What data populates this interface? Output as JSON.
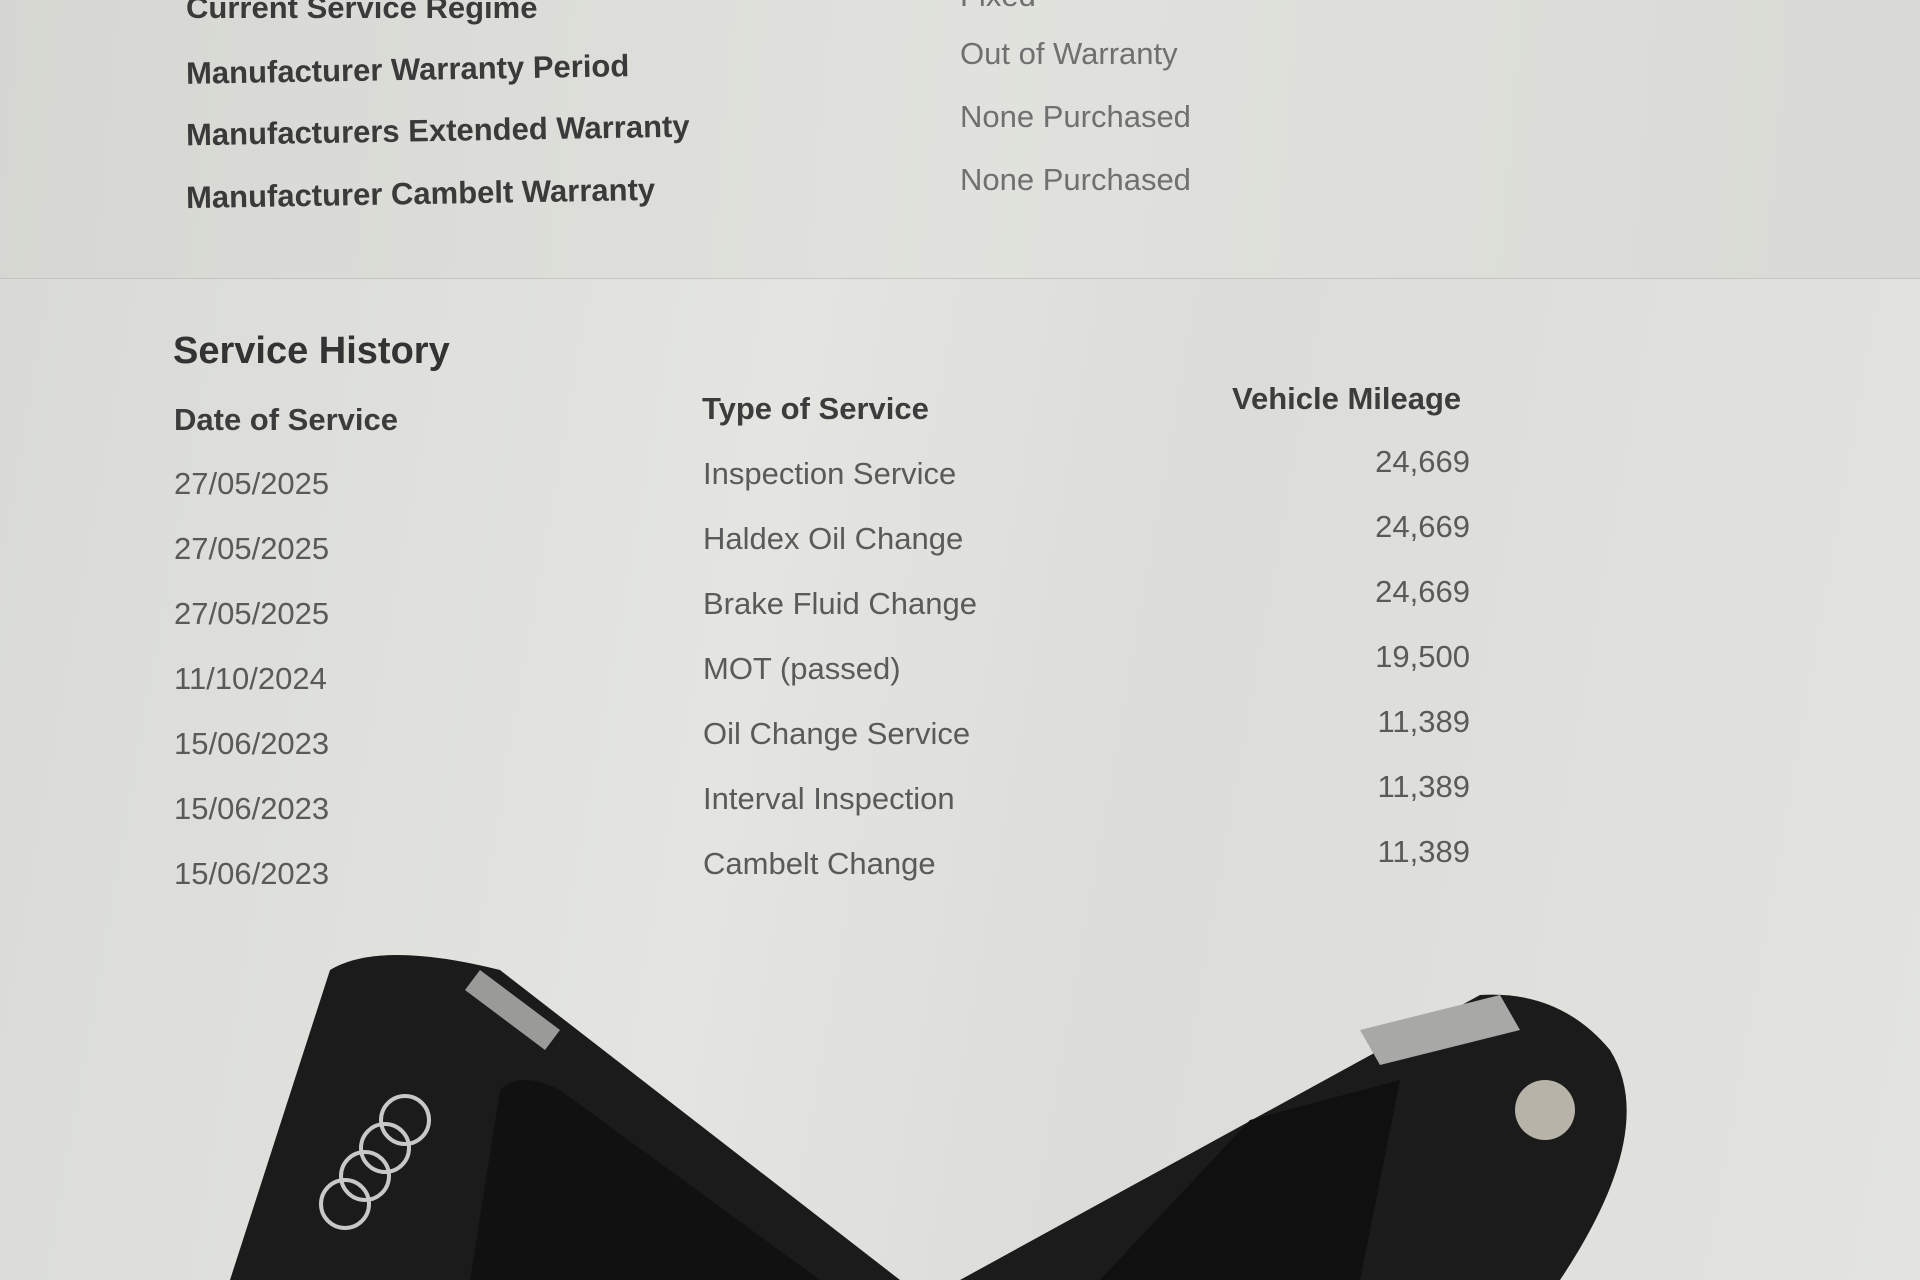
{
  "warranty_section": {
    "rows": [
      {
        "label": "Current Service Regime",
        "value": "Fixed"
      },
      {
        "label": "Manufacturer Warranty Period",
        "value": "Out of Warranty"
      },
      {
        "label": "Manufacturers Extended Warranty",
        "value": "None Purchased"
      },
      {
        "label": "Manufacturer Cambelt Warranty",
        "value": "None Purchased"
      }
    ]
  },
  "service_history": {
    "title": "Service History",
    "columns": [
      "Date of Service",
      "Type of Service",
      "Vehicle Mileage"
    ],
    "rows": [
      {
        "date": "27/05/2025",
        "type": "Inspection Service",
        "mileage": "24,669"
      },
      {
        "date": "27/05/2025",
        "type": "Haldex Oil Change",
        "mileage": "24,669"
      },
      {
        "date": "27/05/2025",
        "type": "Brake Fluid Change",
        "mileage": "24,669"
      },
      {
        "date": "11/10/2024",
        "type": "MOT (passed)",
        "mileage": "19,500"
      },
      {
        "date": "15/06/2023",
        "type": "Oil Change Service",
        "mileage": "11,389"
      },
      {
        "date": "15/06/2023",
        "type": "Interval Inspection",
        "mileage": "11,389"
      },
      {
        "date": "15/06/2023",
        "type": "Cambelt Change",
        "mileage": "11,389"
      }
    ]
  },
  "keys": {
    "brand_logo": "four-rings-logo",
    "color": "#1a1a1a"
  }
}
